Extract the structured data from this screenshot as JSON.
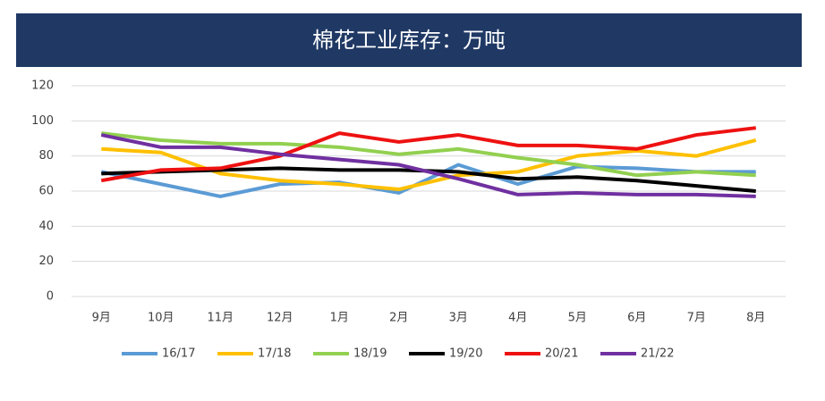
{
  "chart_data": {
    "type": "line",
    "title": "棉花工业库存：万吨",
    "categories": [
      "9月",
      "10月",
      "11月",
      "12月",
      "1月",
      "2月",
      "3月",
      "4月",
      "5月",
      "6月",
      "7月",
      "8月"
    ],
    "series": [
      {
        "name": "16/17",
        "color": "#5b9bd5",
        "values": [
          71,
          64,
          57,
          64,
          65,
          59,
          75,
          64,
          74,
          73,
          71,
          71
        ]
      },
      {
        "name": "17/18",
        "color": "#ffc000",
        "values": [
          84,
          82,
          70,
          66,
          64,
          61,
          69,
          71,
          80,
          83,
          80,
          89
        ]
      },
      {
        "name": "18/19",
        "color": "#92d050",
        "values": [
          93,
          89,
          87,
          87,
          85,
          81,
          84,
          79,
          75,
          69,
          71,
          69
        ]
      },
      {
        "name": "19/20",
        "color": "#000000",
        "values": [
          70,
          71,
          72,
          73,
          72,
          72,
          71,
          67,
          68,
          66,
          63,
          60
        ]
      },
      {
        "name": "20/21",
        "color": "#ee1111",
        "values": [
          66,
          72,
          73,
          80,
          93,
          88,
          92,
          86,
          86,
          84,
          92,
          96
        ]
      },
      {
        "name": "21/22",
        "color": "#7030a0",
        "values": [
          92,
          85,
          85,
          81,
          78,
          75,
          67,
          58,
          59,
          58,
          58,
          57
        ]
      }
    ],
    "ylim": [
      0,
      120
    ],
    "yticks": [
      0,
      20,
      40,
      60,
      80,
      100,
      120
    ],
    "grid": true,
    "legend": "bottom"
  }
}
